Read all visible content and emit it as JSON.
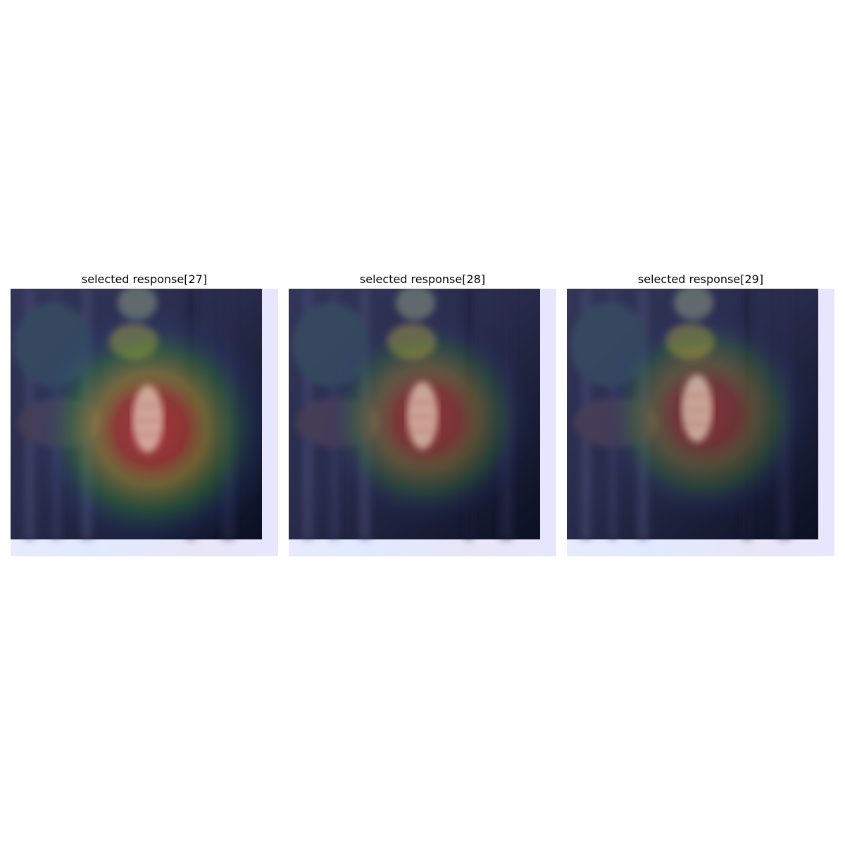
{
  "figure": {
    "panels": [
      {
        "title": "selected response[27]",
        "hotspot_color": "#c0303a",
        "ring_colors": [
          "#c0303a",
          "#c8b030",
          "#3a8a3a",
          "#2a4a8a"
        ]
      },
      {
        "title": "selected response[28]",
        "hotspot_color": "#b83034",
        "ring_colors": [
          "#b83034",
          "#b8a030",
          "#3a7a3a",
          "#2a3a7a"
        ]
      },
      {
        "title": "selected response[29]",
        "hotspot_color": "#b03030",
        "ring_colors": [
          "#b03030",
          "#a89830",
          "#3a7a3a",
          "#2a3a7a"
        ]
      }
    ],
    "colors": {
      "scene_dark": "#1e2038",
      "scene_mid": "#34365a",
      "border_glow": "#e6e8ff",
      "object_light": "#e8d6c0",
      "flower_yellow": "#b8a040"
    }
  }
}
